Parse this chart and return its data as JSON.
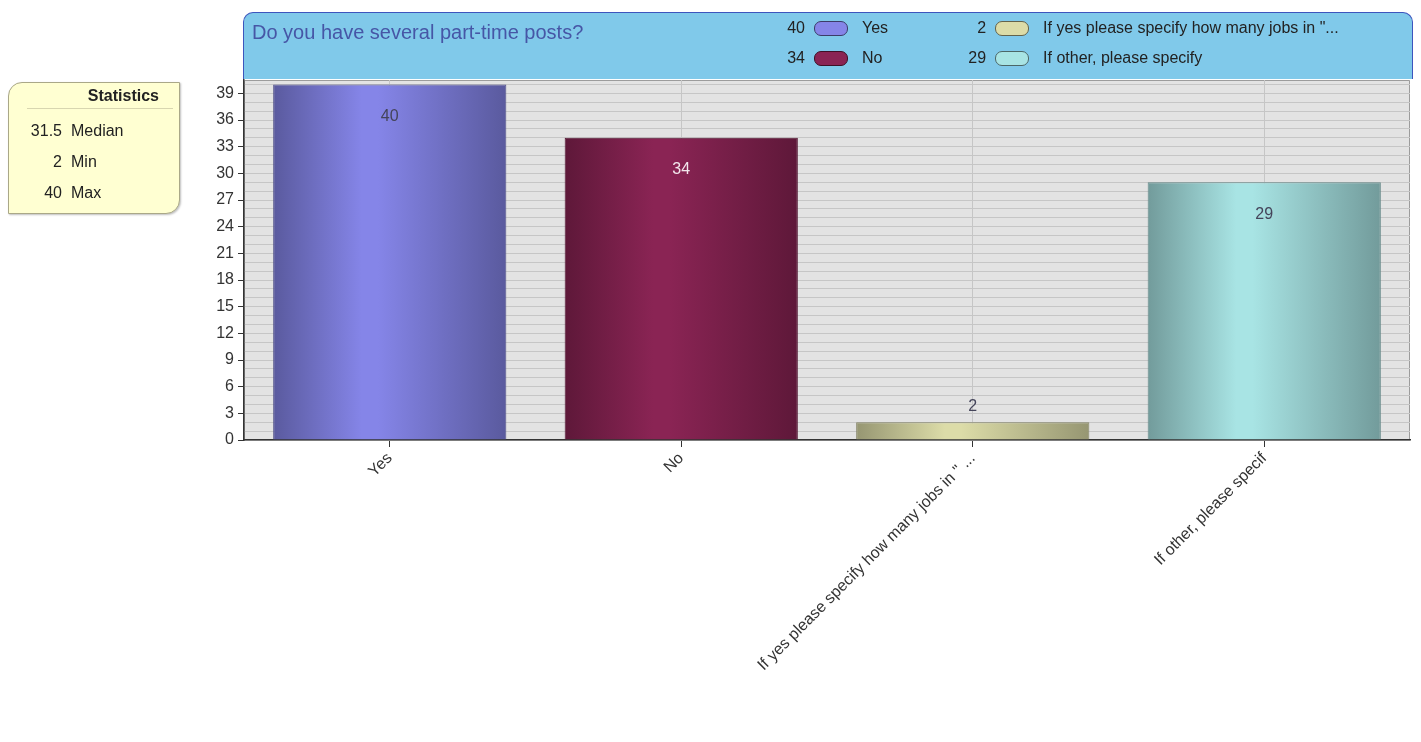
{
  "chart_data": {
    "type": "bar",
    "title": "Do you have several part-time posts?",
    "categories": [
      "Yes",
      "No",
      "If yes please specify how many jobs in \" ...",
      "If other, please specif"
    ],
    "series": [
      {
        "name": "Yes",
        "color": "#8585e8",
        "values": [
          40,
          null,
          null,
          null
        ],
        "value_labels": [
          "40",
          null,
          null,
          null
        ]
      },
      {
        "name": "No",
        "color": "#8a2454",
        "values": [
          null,
          34,
          null,
          null
        ],
        "value_labels": [
          null,
          "34",
          null,
          null
        ]
      },
      {
        "name": "If yes please specify how many jobs in \"...",
        "color": "#dcdca8",
        "values": [
          null,
          null,
          2,
          null
        ],
        "value_labels": [
          null,
          null,
          "2",
          null
        ]
      },
      {
        "name": "If other, please specify",
        "color": "#a8e4e4",
        "values": [
          null,
          null,
          null,
          29
        ],
        "value_labels": [
          null,
          null,
          null,
          "29"
        ]
      }
    ],
    "ylim": [
      0,
      40.5
    ],
    "yticks": [
      0,
      {
        "value": 1,
        "label": null
      },
      {
        "value": 2,
        "label": null
      },
      3,
      {
        "value": 4,
        "label": null
      },
      {
        "value": 5,
        "label": null
      },
      6,
      {
        "value": 7,
        "label": null
      },
      {
        "value": 8,
        "label": null
      },
      9,
      {
        "value": 10,
        "label": null
      },
      {
        "value": 11,
        "label": null
      },
      12,
      {
        "value": 13,
        "label": null
      },
      {
        "value": 14,
        "label": null
      },
      15,
      {
        "value": 16,
        "label": null
      },
      {
        "value": 17,
        "label": null
      },
      18,
      {
        "value": 19,
        "label": null
      },
      {
        "value": 20,
        "label": null
      },
      21,
      {
        "value": 22,
        "label": null
      },
      {
        "value": 23,
        "label": null
      },
      24,
      {
        "value": 25,
        "label": null
      },
      {
        "value": 26,
        "label": null
      },
      27,
      {
        "value": 28,
        "label": null
      },
      {
        "value": 29,
        "label": null
      },
      30,
      {
        "value": 31,
        "label": null
      },
      {
        "value": 32,
        "label": null
      },
      33,
      {
        "value": 34,
        "label": null
      },
      {
        "value": 35,
        "label": null
      },
      36,
      {
        "value": 37,
        "label": null
      },
      {
        "value": 38,
        "label": null
      },
      39,
      {
        "value": 40,
        "label": null
      }
    ],
    "grid": true,
    "legend": "top right",
    "annotations": [
      "Statistics",
      "31.5 Median",
      "2 Min",
      "40 Max"
    ]
  }
}
